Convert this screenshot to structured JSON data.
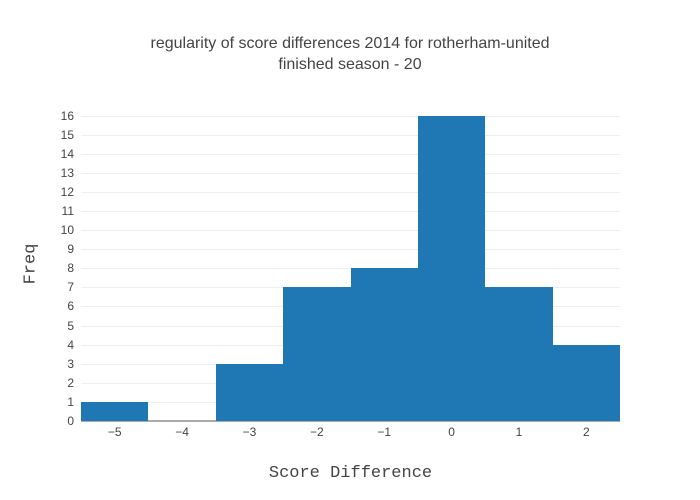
{
  "title": {
    "line1": "regularity of score differences 2014 for rotherham-united",
    "line2": "finished season - 20"
  },
  "chart_data": {
    "type": "bar",
    "subtype": "histogram",
    "title": "regularity of score differences 2014 for rotherham-united finished season - 20",
    "categories": [
      -5,
      -4,
      -3,
      -2,
      -1,
      0,
      1,
      2
    ],
    "values": [
      1,
      0,
      3,
      7,
      8,
      16,
      7,
      4
    ],
    "bar_width": 1,
    "xlabel": "Score Difference",
    "ylabel": "Freq",
    "xlim": [
      -5.5,
      2.5
    ],
    "ylim": [
      0,
      16.4
    ],
    "x_tick_labels": [
      "−5",
      "−4",
      "−3",
      "−2",
      "−1",
      "0",
      "1",
      "2"
    ],
    "y_tick_values": [
      0,
      1,
      2,
      3,
      4,
      5,
      6,
      7,
      8,
      9,
      10,
      11,
      12,
      13,
      14,
      15,
      16
    ],
    "grid": true,
    "legend": false,
    "colors": {
      "bar": "#1f77b4",
      "grid": "#eeeeee",
      "axis_line": "#aaaaaa",
      "text": "#444444",
      "background": "#ffffff"
    }
  }
}
